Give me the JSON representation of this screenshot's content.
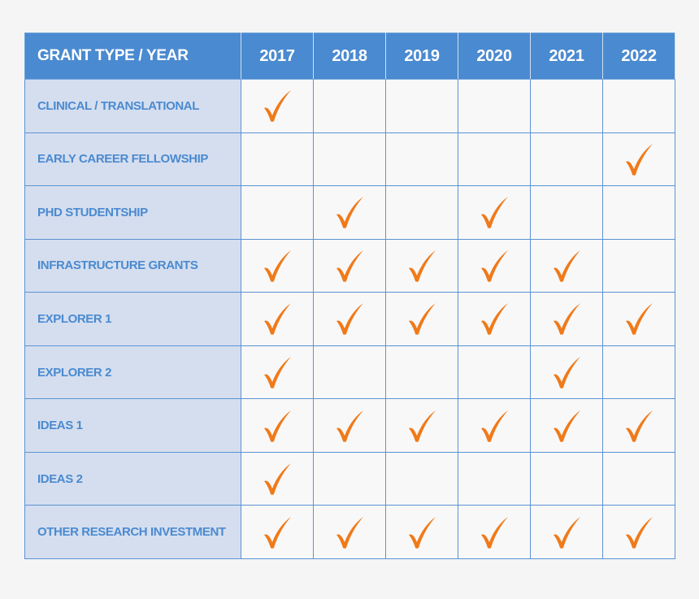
{
  "table": {
    "header_label": "GRANT TYPE / YEAR",
    "years": [
      "2017",
      "2018",
      "2019",
      "2020",
      "2021",
      "2022"
    ],
    "rows": [
      {
        "label": "CLINICAL / TRANSLATIONAL",
        "checks": [
          true,
          false,
          false,
          false,
          false,
          false
        ]
      },
      {
        "label": "EARLY CAREER FELLOWSHIP",
        "checks": [
          false,
          false,
          false,
          false,
          false,
          true
        ]
      },
      {
        "label": "PHD STUDENTSHIP",
        "checks": [
          false,
          true,
          false,
          true,
          false,
          false
        ]
      },
      {
        "label": "INFRASTRUCTURE GRANTS",
        "checks": [
          true,
          true,
          true,
          true,
          true,
          false
        ]
      },
      {
        "label": "EXPLORER  1",
        "checks": [
          true,
          true,
          true,
          true,
          true,
          true
        ]
      },
      {
        "label": "EXPLORER 2",
        "checks": [
          true,
          false,
          false,
          false,
          true,
          false
        ]
      },
      {
        "label": "IDEAS 1",
        "checks": [
          true,
          true,
          true,
          true,
          true,
          true
        ]
      },
      {
        "label": "IDEAS 2",
        "checks": [
          true,
          false,
          false,
          false,
          false,
          false
        ]
      },
      {
        "label": "OTHER RESEARCH INVESTMENT",
        "checks": [
          true,
          true,
          true,
          true,
          true,
          true
        ]
      }
    ]
  },
  "colors": {
    "header_bg": "#4a8ad0",
    "label_bg": "#d5deef",
    "label_text": "#4a8ad0",
    "cell_bg": "#f8f8f8",
    "border": "#5b93d3",
    "check": "#f07a1a"
  },
  "icons": {
    "check": "check-icon"
  }
}
